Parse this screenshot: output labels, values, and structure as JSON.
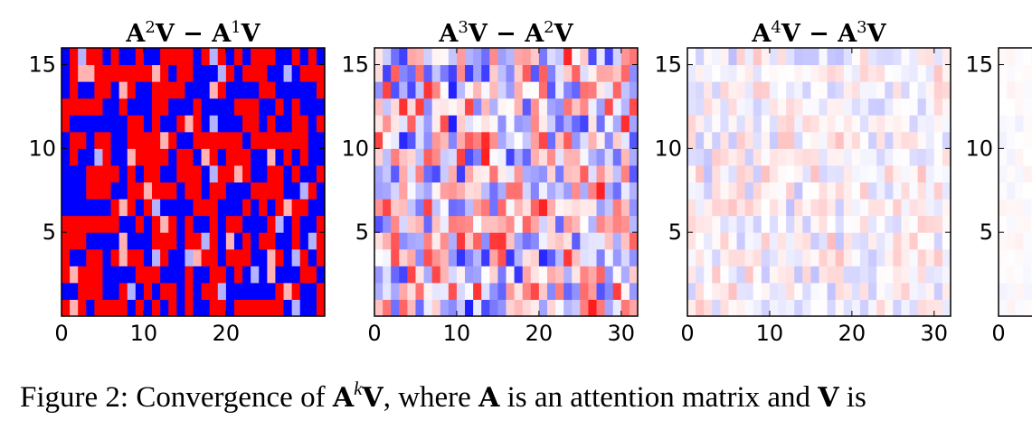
{
  "chart_data": [
    {
      "type": "heatmap",
      "title": "A²V − A¹V",
      "title_parts": {
        "base1": "A",
        "exp1": "2",
        "mid": "V − A",
        "exp2": "1",
        "end": "V"
      },
      "x_range": [
        0,
        32
      ],
      "y_range": [
        0,
        16
      ],
      "xticks": [
        "0",
        "10",
        "20"
      ],
      "yticks": [
        "5",
        "10",
        "15"
      ],
      "intensity": 1.0,
      "colormap": "bwr"
    },
    {
      "type": "heatmap",
      "title": "A³V − A²V",
      "title_parts": {
        "base1": "A",
        "exp1": "3",
        "mid": "V − A",
        "exp2": "2",
        "end": "V"
      },
      "x_range": [
        0,
        32
      ],
      "y_range": [
        0,
        16
      ],
      "xticks": [
        "0",
        "10",
        "20",
        "30"
      ],
      "yticks": [
        "5",
        "10",
        "15"
      ],
      "intensity": 0.7,
      "colormap": "bwr"
    },
    {
      "type": "heatmap",
      "title": "A⁴V − A³V",
      "title_parts": {
        "base1": "A",
        "exp1": "4",
        "mid": "V − A",
        "exp2": "3",
        "end": "V"
      },
      "x_range": [
        0,
        32
      ],
      "y_range": [
        0,
        16
      ],
      "xticks": [
        "0",
        "10",
        "20",
        "30"
      ],
      "yticks": [
        "5",
        "10",
        "15"
      ],
      "intensity": 0.2,
      "colormap": "bwr"
    },
    {
      "type": "heatmap",
      "title": "",
      "x_range": [
        0,
        32
      ],
      "y_range": [
        0,
        16
      ],
      "xticks": [
        "0"
      ],
      "yticks": [
        "5",
        "10",
        "15"
      ],
      "intensity": 0.05,
      "colormap": "bwr"
    }
  ],
  "caption": {
    "prefix": "Figure 2: Convergence of ",
    "A": "A",
    "k": "k",
    "V": "V",
    "middle": ", where ",
    "middle2": " is an attention matrix and ",
    "suffix": " is"
  },
  "colors": {
    "negative": "#0000ff",
    "positive": "#ff0000",
    "zero": "#ffffff"
  }
}
